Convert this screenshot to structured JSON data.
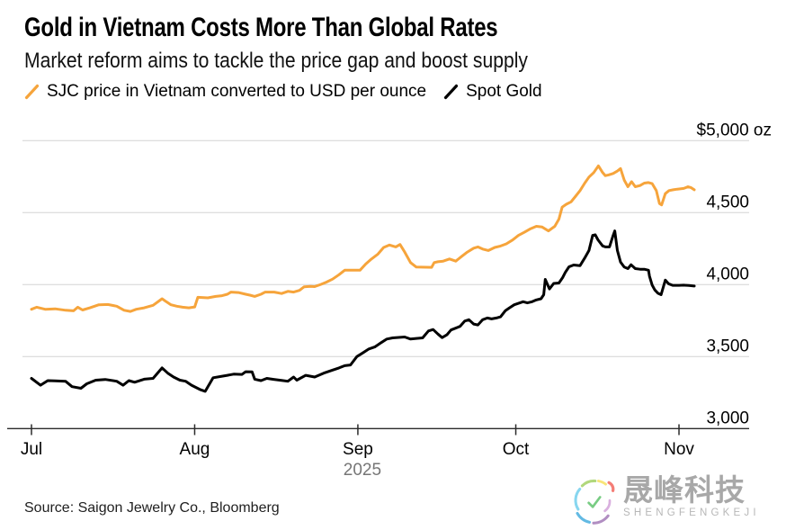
{
  "header": {
    "title": "Gold in Vietnam Costs More Than Global Rates",
    "subtitle": "Market reform aims to tackle the price gap and boost supply"
  },
  "source_note": "Source: Saigon Jewelry Co., Bloomberg",
  "watermark": {
    "cn": "晟峰科技",
    "en": "SHENGFENGKEJI"
  },
  "chart_data": {
    "type": "line",
    "title": "Gold in Vietnam Costs More Than Global Rates",
    "subtitle": "Market reform aims to tackle the price gap and boost supply",
    "x_unit": "days since Jul 1, 2025",
    "grid": "horizontal",
    "legend_position": "top-left",
    "ylim": [
      3000,
      5000
    ],
    "y_ticks": [
      {
        "value": 3000,
        "label": "3,000"
      },
      {
        "value": 3500,
        "label": "3,500"
      },
      {
        "value": 4000,
        "label": "4,000"
      },
      {
        "value": 4500,
        "label": "4,500"
      },
      {
        "value": 5000,
        "label": "$5,000 oz"
      }
    ],
    "x_ticks": [
      {
        "day": 0,
        "label": "Jul"
      },
      {
        "day": 31,
        "label": "Aug"
      },
      {
        "day": 62,
        "label": "Sep"
      },
      {
        "day": 92,
        "label": "Oct"
      },
      {
        "day": 123,
        "label": "Nov"
      }
    ],
    "year_label": "2025",
    "series": [
      {
        "name": "SJC price in Vietnam converted to USD per ounce",
        "color": "#F6A43B",
        "points": [
          [
            0,
            3829
          ],
          [
            1,
            3843
          ],
          [
            2.6,
            3829
          ],
          [
            4.5,
            3832
          ],
          [
            6.5,
            3822
          ],
          [
            8,
            3818
          ],
          [
            8.8,
            3843
          ],
          [
            9.7,
            3824
          ],
          [
            11.1,
            3839
          ],
          [
            12.8,
            3860
          ],
          [
            14.5,
            3862
          ],
          [
            16.2,
            3850
          ],
          [
            17.6,
            3822
          ],
          [
            18.8,
            3814
          ],
          [
            19.9,
            3829
          ],
          [
            21.4,
            3839
          ],
          [
            23.1,
            3856
          ],
          [
            24.8,
            3902
          ],
          [
            25.6,
            3881
          ],
          [
            26.5,
            3860
          ],
          [
            27.6,
            3850
          ],
          [
            28.7,
            3843
          ],
          [
            29.9,
            3839
          ],
          [
            31,
            3845
          ],
          [
            31.6,
            3912
          ],
          [
            33.5,
            3908
          ],
          [
            35,
            3918
          ],
          [
            36.2,
            3923
          ],
          [
            37.2,
            3933
          ],
          [
            37.9,
            3948
          ],
          [
            39.3,
            3945
          ],
          [
            40.7,
            3933
          ],
          [
            41.5,
            3927
          ],
          [
            42.4,
            3918
          ],
          [
            43.6,
            3933
          ],
          [
            44.4,
            3948
          ],
          [
            46.1,
            3948
          ],
          [
            47.5,
            3938
          ],
          [
            48.7,
            3953
          ],
          [
            49.8,
            3948
          ],
          [
            50.9,
            3960
          ],
          [
            51.8,
            3985
          ],
          [
            53,
            3988
          ],
          [
            53.8,
            3986
          ],
          [
            55,
            4002
          ],
          [
            56,
            4017
          ],
          [
            57.2,
            4038
          ],
          [
            58.4,
            4069
          ],
          [
            59.5,
            4100
          ],
          [
            62.4,
            4100
          ],
          [
            63.5,
            4143
          ],
          [
            64.6,
            4178
          ],
          [
            65.8,
            4212
          ],
          [
            66.9,
            4258
          ],
          [
            68,
            4275
          ],
          [
            69.2,
            4262
          ],
          [
            70,
            4279
          ],
          [
            70.9,
            4226
          ],
          [
            72,
            4153
          ],
          [
            73.1,
            4122
          ],
          [
            76,
            4120
          ],
          [
            76.5,
            4153
          ],
          [
            77.2,
            4159
          ],
          [
            78.2,
            4163
          ],
          [
            79.4,
            4178
          ],
          [
            80.6,
            4163
          ],
          [
            81.7,
            4195
          ],
          [
            82.8,
            4226
          ],
          [
            84,
            4253
          ],
          [
            84.8,
            4262
          ],
          [
            85.7,
            4247
          ],
          [
            86.8,
            4237
          ],
          [
            88,
            4258
          ],
          [
            89.1,
            4268
          ],
          [
            90.2,
            4283
          ],
          [
            91.4,
            4310
          ],
          [
            92.5,
            4342
          ],
          [
            93.6,
            4363
          ],
          [
            94.8,
            4388
          ],
          [
            95.9,
            4405
          ],
          [
            97,
            4400
          ],
          [
            98.2,
            4373
          ],
          [
            99.4,
            4405
          ],
          [
            100.2,
            4455
          ],
          [
            100.8,
            4538
          ],
          [
            101.6,
            4558
          ],
          [
            102.5,
            4575
          ],
          [
            103.3,
            4611
          ],
          [
            104.2,
            4653
          ],
          [
            105.1,
            4705
          ],
          [
            105.9,
            4747
          ],
          [
            106.8,
            4778
          ],
          [
            107.7,
            4825
          ],
          [
            108.5,
            4778
          ],
          [
            109,
            4757
          ],
          [
            109.6,
            4762
          ],
          [
            110.5,
            4772
          ],
          [
            111.3,
            4789
          ],
          [
            111.9,
            4806
          ],
          [
            112.6,
            4726
          ],
          [
            113.3,
            4680
          ],
          [
            114,
            4715
          ],
          [
            114.7,
            4680
          ],
          [
            115.6,
            4688
          ],
          [
            116.4,
            4705
          ],
          [
            117.2,
            4709
          ],
          [
            117.9,
            4701
          ],
          [
            118.7,
            4653
          ],
          [
            119.3,
            4563
          ],
          [
            119.7,
            4554
          ],
          [
            120.4,
            4632
          ],
          [
            121.1,
            4653
          ],
          [
            121.9,
            4659
          ],
          [
            122.7,
            4663
          ],
          [
            123.9,
            4668
          ],
          [
            124.7,
            4680
          ],
          [
            125.3,
            4673
          ],
          [
            125.9,
            4659
          ]
        ]
      },
      {
        "name": "Spot Gold",
        "color": "#000000",
        "points": [
          [
            0,
            3349
          ],
          [
            1.7,
            3301
          ],
          [
            3.1,
            3333
          ],
          [
            4.5,
            3331
          ],
          [
            6.5,
            3328
          ],
          [
            7.7,
            3291
          ],
          [
            9.4,
            3280
          ],
          [
            10.5,
            3311
          ],
          [
            12.2,
            3336
          ],
          [
            14,
            3341
          ],
          [
            16.2,
            3329
          ],
          [
            17.4,
            3301
          ],
          [
            18.5,
            3333
          ],
          [
            19.6,
            3322
          ],
          [
            21.4,
            3343
          ],
          [
            23.1,
            3349
          ],
          [
            24.8,
            3421
          ],
          [
            25.9,
            3385
          ],
          [
            27,
            3358
          ],
          [
            28.2,
            3336
          ],
          [
            29.3,
            3329
          ],
          [
            30.4,
            3301
          ],
          [
            32.1,
            3270
          ],
          [
            33,
            3259
          ],
          [
            34.5,
            3353
          ],
          [
            36.2,
            3364
          ],
          [
            37.2,
            3370
          ],
          [
            38.4,
            3378
          ],
          [
            40,
            3376
          ],
          [
            40.7,
            3395
          ],
          [
            41.9,
            3394
          ],
          [
            42.4,
            3343
          ],
          [
            43.6,
            3333
          ],
          [
            44.7,
            3349
          ],
          [
            46,
            3342
          ],
          [
            47.5,
            3335
          ],
          [
            48.7,
            3329
          ],
          [
            49.8,
            3358
          ],
          [
            50.4,
            3336
          ],
          [
            52.1,
            3370
          ],
          [
            53.8,
            3358
          ],
          [
            55.5,
            3385
          ],
          [
            57.2,
            3406
          ],
          [
            58.4,
            3421
          ],
          [
            59.5,
            3437
          ],
          [
            60.6,
            3442
          ],
          [
            61.8,
            3500
          ],
          [
            62.9,
            3525
          ],
          [
            64.1,
            3553
          ],
          [
            65.2,
            3567
          ],
          [
            66.3,
            3594
          ],
          [
            67.5,
            3622
          ],
          [
            68.6,
            3630
          ],
          [
            70.9,
            3636
          ],
          [
            72,
            3622
          ],
          [
            73.1,
            3626
          ],
          [
            74.3,
            3630
          ],
          [
            75.4,
            3678
          ],
          [
            76.3,
            3688
          ],
          [
            77.2,
            3657
          ],
          [
            78,
            3632
          ],
          [
            78.9,
            3651
          ],
          [
            79.7,
            3685
          ],
          [
            81.4,
            3710
          ],
          [
            82.3,
            3747
          ],
          [
            83.1,
            3756
          ],
          [
            84,
            3726
          ],
          [
            84.8,
            3720
          ],
          [
            85.7,
            3756
          ],
          [
            86.6,
            3768
          ],
          [
            87.4,
            3762
          ],
          [
            88.3,
            3768
          ],
          [
            89.1,
            3776
          ],
          [
            90,
            3818
          ],
          [
            90.8,
            3839
          ],
          [
            91.7,
            3860
          ],
          [
            93.4,
            3881
          ],
          [
            94.2,
            3873
          ],
          [
            95.1,
            3881
          ],
          [
            95.9,
            3894
          ],
          [
            96.8,
            3902
          ],
          [
            97.3,
            3930
          ],
          [
            97.6,
            4036
          ],
          [
            98.4,
            3970
          ],
          [
            99.2,
            4008
          ],
          [
            100.2,
            4011
          ],
          [
            100.9,
            4049
          ],
          [
            101.4,
            4085
          ],
          [
            102.1,
            4124
          ],
          [
            103,
            4136
          ],
          [
            104.2,
            4132
          ],
          [
            105.1,
            4185
          ],
          [
            105.9,
            4237
          ],
          [
            106.6,
            4342
          ],
          [
            107.1,
            4346
          ],
          [
            107.6,
            4311
          ],
          [
            108.5,
            4269
          ],
          [
            109,
            4262
          ],
          [
            109.8,
            4262
          ],
          [
            110.5,
            4342
          ],
          [
            110.8,
            4373
          ],
          [
            111.3,
            4237
          ],
          [
            111.9,
            4157
          ],
          [
            112.6,
            4122
          ],
          [
            113.3,
            4111
          ],
          [
            113.9,
            4138
          ],
          [
            114.7,
            4111
          ],
          [
            115.6,
            4107
          ],
          [
            116.4,
            4107
          ],
          [
            117.2,
            4100
          ],
          [
            117.4,
            4059
          ],
          [
            117.9,
            3996
          ],
          [
            118.4,
            3963
          ],
          [
            119,
            3940
          ],
          [
            119.6,
            3930
          ],
          [
            120.4,
            4031
          ],
          [
            121,
            4006
          ],
          [
            121.8,
            3995
          ],
          [
            123,
            3995
          ],
          [
            123.9,
            3996
          ],
          [
            124.9,
            3994
          ],
          [
            125.9,
            3990
          ]
        ]
      }
    ]
  }
}
